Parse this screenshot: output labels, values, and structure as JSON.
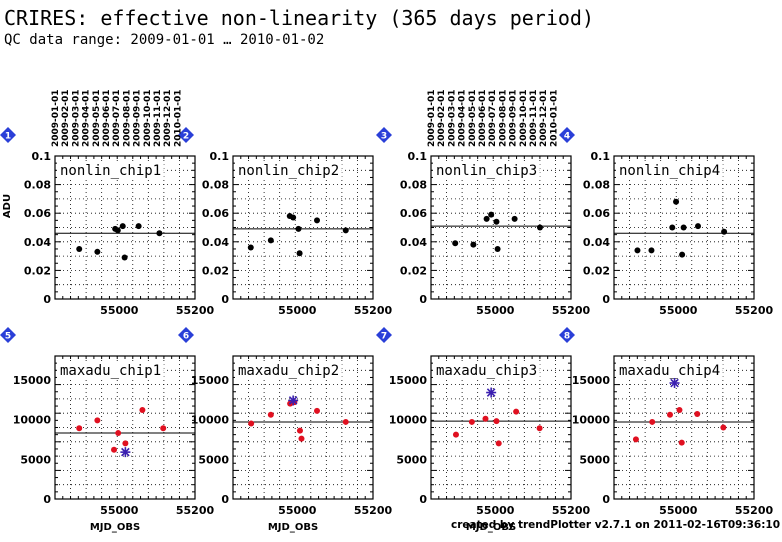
{
  "header": {
    "title": "CRIRES: effective non-linearity (365 days period)",
    "subtitle": "QC data range: 2009-01-01 … 2010-01-02"
  },
  "footer": "created by trendPlotter v2.7.1 on 2011-02-16T09:36:10",
  "top_dates": [
    "2009-01-01",
    "2009-02-01",
    "2009-03-01",
    "2009-04-01",
    "2009-05-01",
    "2009-06-01",
    "2009-07-01",
    "2009-08-01",
    "2009-09-01",
    "2009-10-01",
    "2009-11-01",
    "2009-12-01",
    "2010-01-01"
  ],
  "colors": {
    "badge": "#2a3fd8",
    "nonlin_point": "#000000",
    "maxadu_point": "#e01020",
    "star": "#3a1fb0",
    "grid": "#000000"
  },
  "chart_data": [
    {
      "type": "scatter",
      "badge": "1",
      "title": "nonlin_chip1",
      "ylabel": "ADU",
      "xlabel": "",
      "x_range": [
        54830,
        55200
      ],
      "y_range": [
        0,
        0.1
      ],
      "x_ticks": [
        55000,
        55200
      ],
      "x_tick_labels": [
        "55000",
        "55200"
      ],
      "y_ticks": [
        0,
        0.02,
        0.04,
        0.06,
        0.08,
        0.1
      ],
      "y_tick_labels": [
        "0",
        "0.02",
        "0.04",
        "0.06",
        "0.08",
        "0.1"
      ],
      "reference_line": 0.046,
      "grid": true,
      "points": [
        [
          54894,
          0.035
        ],
        [
          54942,
          0.033
        ],
        [
          54989,
          0.049
        ],
        [
          54996,
          0.048
        ],
        [
          55009,
          0.051
        ],
        [
          55014,
          0.029
        ],
        [
          55051,
          0.051
        ],
        [
          55106,
          0.046
        ]
      ],
      "stars": []
    },
    {
      "type": "scatter",
      "badge": "2",
      "title": "nonlin_chip2",
      "ylabel": "",
      "xlabel": "",
      "x_range": [
        54830,
        55200
      ],
      "y_range": [
        0,
        0.1
      ],
      "x_ticks": [
        55000,
        55200
      ],
      "x_tick_labels": [
        "55000",
        "55200"
      ],
      "y_ticks": [
        0,
        0.02,
        0.04,
        0.06,
        0.08,
        0.1
      ],
      "y_tick_labels": [
        "0",
        "0.02",
        "0.04",
        "0.06",
        "0.08",
        "0.1"
      ],
      "reference_line": 0.049,
      "grid": true,
      "points": [
        [
          54877,
          0.036
        ],
        [
          54930,
          0.041
        ],
        [
          54980,
          0.058
        ],
        [
          54989,
          0.057
        ],
        [
          55003,
          0.049
        ],
        [
          55006,
          0.032
        ],
        [
          55052,
          0.055
        ],
        [
          55128,
          0.048
        ]
      ],
      "stars": []
    },
    {
      "type": "scatter",
      "badge": "3",
      "title": "nonlin_chip3",
      "ylabel": "",
      "xlabel": "",
      "x_range": [
        54830,
        55200
      ],
      "y_range": [
        0,
        0.1
      ],
      "x_ticks": [
        55000,
        55200
      ],
      "x_tick_labels": [
        "55000",
        "55200"
      ],
      "y_ticks": [
        0,
        0.02,
        0.04,
        0.06,
        0.08,
        0.1
      ],
      "y_tick_labels": [
        "0",
        "0.02",
        "0.04",
        "0.06",
        "0.08",
        "0.1"
      ],
      "reference_line": 0.051,
      "grid": true,
      "points": [
        [
          54894,
          0.039
        ],
        [
          54942,
          0.038
        ],
        [
          54977,
          0.056
        ],
        [
          54989,
          0.059
        ],
        [
          55003,
          0.054
        ],
        [
          55006,
          0.035
        ],
        [
          55051,
          0.056
        ],
        [
          55118,
          0.05
        ]
      ],
      "stars": []
    },
    {
      "type": "scatter",
      "badge": "4",
      "title": "nonlin_chip4",
      "ylabel": "",
      "xlabel": "",
      "x_range": [
        54830,
        55200
      ],
      "y_range": [
        0,
        0.1
      ],
      "x_ticks": [
        55000,
        55200
      ],
      "x_tick_labels": [
        "55000",
        "55200"
      ],
      "y_ticks": [
        0,
        0.02,
        0.04,
        0.06,
        0.08,
        0.1
      ],
      "y_tick_labels": [
        "0",
        "0.02",
        "0.04",
        "0.06",
        "0.08",
        "0.1"
      ],
      "reference_line": 0.046,
      "grid": true,
      "points": [
        [
          54892,
          0.034
        ],
        [
          54929,
          0.034
        ],
        [
          54984,
          0.05
        ],
        [
          54994,
          0.068
        ],
        [
          55010,
          0.031
        ],
        [
          55014,
          0.05
        ],
        [
          55052,
          0.051
        ],
        [
          55121,
          0.047
        ]
      ],
      "stars": []
    },
    {
      "type": "scatter",
      "badge": "5",
      "title": "maxadu_chip1",
      "ylabel": "",
      "xlabel": "MJD_OBS",
      "x_range": [
        54830,
        55200
      ],
      "y_range": [
        0,
        18000
      ],
      "x_ticks": [
        55000,
        55200
      ],
      "x_tick_labels": [
        "55000",
        "55200"
      ],
      "y_ticks": [
        0,
        5000,
        10000,
        15000
      ],
      "y_tick_labels": [
        "0",
        "5000",
        "10000",
        "15000"
      ],
      "reference_line": 8300,
      "grid": true,
      "points": [
        [
          54894,
          8900
        ],
        [
          54942,
          9900
        ],
        [
          54986,
          6200
        ],
        [
          54997,
          8300
        ],
        [
          55016,
          7000
        ],
        [
          55061,
          11200
        ],
        [
          55116,
          8900
        ]
      ],
      "stars": [
        [
          55016,
          5900
        ]
      ]
    },
    {
      "type": "scatter",
      "badge": "6",
      "title": "maxadu_chip2",
      "ylabel": "",
      "xlabel": "MJD_OBS",
      "x_range": [
        54830,
        55200
      ],
      "y_range": [
        0,
        18000
      ],
      "x_ticks": [
        55000,
        55200
      ],
      "x_tick_labels": [
        "55000",
        "55200"
      ],
      "y_ticks": [
        0,
        5000,
        10000,
        15000
      ],
      "y_tick_labels": [
        "0",
        "5000",
        "10000",
        "15000"
      ],
      "reference_line": 9700,
      "grid": true,
      "points": [
        [
          54878,
          9500
        ],
        [
          54930,
          10600
        ],
        [
          54981,
          12000
        ],
        [
          54992,
          12200
        ],
        [
          55007,
          8600
        ],
        [
          55011,
          7600
        ],
        [
          55052,
          11100
        ],
        [
          55128,
          9700
        ]
      ],
      "stars": [
        [
          54989,
          12400
        ]
      ]
    },
    {
      "type": "scatter",
      "badge": "7",
      "title": "maxadu_chip3",
      "ylabel": "",
      "xlabel": "MJD_OBS",
      "x_range": [
        54830,
        55200
      ],
      "y_range": [
        0,
        18000
      ],
      "x_ticks": [
        55000,
        55200
      ],
      "x_tick_labels": [
        "55000",
        "55200"
      ],
      "y_ticks": [
        0,
        5000,
        10000,
        15000
      ],
      "y_tick_labels": [
        "0",
        "5000",
        "10000",
        "15000"
      ],
      "reference_line": 9800,
      "grid": true,
      "points": [
        [
          54896,
          8100
        ],
        [
          54938,
          9700
        ],
        [
          54974,
          10100
        ],
        [
          55003,
          9800
        ],
        [
          55009,
          7000
        ],
        [
          55055,
          11000
        ],
        [
          55117,
          8900
        ]
      ],
      "stars": [
        [
          54989,
          13400
        ]
      ]
    },
    {
      "type": "scatter",
      "badge": "8",
      "title": "maxadu_chip4",
      "ylabel": "",
      "xlabel": "",
      "x_range": [
        54830,
        55200
      ],
      "y_range": [
        0,
        18000
      ],
      "x_ticks": [
        55000,
        55200
      ],
      "x_tick_labels": [
        "55000",
        "55200"
      ],
      "y_ticks": [
        0,
        5000,
        10000,
        15000
      ],
      "y_tick_labels": [
        "0",
        "5000",
        "10000",
        "15000"
      ],
      "reference_line": 9700,
      "grid": true,
      "points": [
        [
          54888,
          7500
        ],
        [
          54931,
          9700
        ],
        [
          54978,
          10600
        ],
        [
          55003,
          11200
        ],
        [
          55009,
          7100
        ],
        [
          55050,
          10700
        ],
        [
          55119,
          9000
        ]
      ],
      "stars": [
        [
          54990,
          14600
        ]
      ]
    }
  ]
}
